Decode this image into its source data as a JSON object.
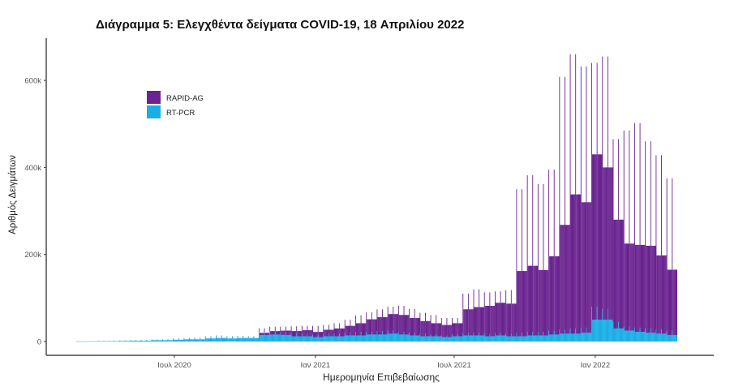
{
  "chart_data": {
    "type": "bar",
    "stacked": true,
    "title": "Διάγραμμα 5: Ελεγχθέντα δείγματα COVID-19, 18 Απριλίου 2022",
    "xlabel": "Ημερομηνία Επιβεβαίωσης",
    "ylabel": "Αριθμός Δειγμάτων",
    "ylim": [
      0,
      680000
    ],
    "xlim": [
      "2020-02-20",
      "2022-04-30"
    ],
    "y_ticks": [
      {
        "value": 0,
        "label": "0"
      },
      {
        "value": 200000,
        "label": "200k"
      },
      {
        "value": 400000,
        "label": "400k"
      },
      {
        "value": 600000,
        "label": "600k"
      }
    ],
    "x_ticks": [
      {
        "date": "2020-07-01",
        "label": "Ιουλ 2020"
      },
      {
        "date": "2021-01-01",
        "label": "Ιαν 2021"
      },
      {
        "date": "2021-07-01",
        "label": "Ιουλ 2021"
      },
      {
        "date": "2022-01-01",
        "label": "Ιαν 2022"
      }
    ],
    "grid": false,
    "legend": {
      "position": "top-left",
      "entries": [
        "RAPID-AG",
        "RT-PCR"
      ]
    },
    "periods": [
      "2020-02-24",
      "2020-03-09",
      "2020-03-23",
      "2020-04-06",
      "2020-04-20",
      "2020-05-04",
      "2020-05-18",
      "2020-06-01",
      "2020-06-15",
      "2020-06-29",
      "2020-07-13",
      "2020-07-27",
      "2020-08-10",
      "2020-08-24",
      "2020-09-07",
      "2020-09-21",
      "2020-10-05",
      "2020-10-19",
      "2020-11-02",
      "2020-11-16",
      "2020-11-30",
      "2020-12-14",
      "2020-12-28",
      "2021-01-11",
      "2021-01-25",
      "2021-02-08",
      "2021-02-22",
      "2021-03-08",
      "2021-03-22",
      "2021-04-05",
      "2021-04-19",
      "2021-05-03",
      "2021-05-17",
      "2021-05-31",
      "2021-06-14",
      "2021-06-28",
      "2021-07-12",
      "2021-07-26",
      "2021-08-09",
      "2021-08-23",
      "2021-09-06",
      "2021-09-20",
      "2021-10-04",
      "2021-10-18",
      "2021-11-01",
      "2021-11-15",
      "2021-11-29",
      "2021-12-13",
      "2021-12-27",
      "2022-01-10",
      "2022-01-24",
      "2022-02-07",
      "2022-02-21",
      "2022-03-07",
      "2022-03-21",
      "2022-04-04"
    ],
    "series": [
      {
        "name": "RT-PCR",
        "color": "#1aaee6",
        "typical": [
          300,
          500,
          1000,
          1000,
          1500,
          2000,
          2000,
          3000,
          3000,
          4000,
          5000,
          5000,
          7000,
          8000,
          7000,
          8000,
          8000,
          15000,
          16000,
          15000,
          12000,
          12000,
          10000,
          12000,
          12000,
          14000,
          14000,
          16000,
          16000,
          18000,
          16000,
          14000,
          12000,
          12000,
          10000,
          12000,
          14000,
          14000,
          12000,
          14000,
          12000,
          12000,
          14000,
          14000,
          16000,
          18000,
          18000,
          20000,
          50000,
          50000,
          30000,
          25000,
          22000,
          20000,
          18000,
          15000
        ],
        "peak": [
          500,
          1000,
          1500,
          2000,
          2500,
          3000,
          3500,
          5000,
          5000,
          7000,
          8000,
          9000,
          12000,
          14000,
          12000,
          13000,
          12000,
          22000,
          24000,
          22000,
          20000,
          18000,
          16000,
          18000,
          18000,
          20000,
          22000,
          22000,
          24000,
          25000,
          22000,
          20000,
          18000,
          16000,
          14000,
          16000,
          20000,
          20000,
          18000,
          20000,
          18000,
          20000,
          22000,
          22000,
          25000,
          28000,
          30000,
          32000,
          80000,
          75000,
          45000,
          35000,
          32000,
          30000,
          28000,
          25000
        ]
      },
      {
        "name": "RAPID-AG",
        "color": "#6a2390",
        "typical": [
          0,
          0,
          0,
          0,
          0,
          0,
          0,
          0,
          0,
          0,
          0,
          0,
          0,
          0,
          0,
          0,
          0,
          5000,
          8000,
          10000,
          12000,
          14000,
          12000,
          15000,
          18000,
          22000,
          28000,
          35000,
          40000,
          45000,
          45000,
          40000,
          35000,
          30000,
          28000,
          30000,
          60000,
          65000,
          70000,
          75000,
          75000,
          150000,
          160000,
          150000,
          180000,
          250000,
          320000,
          300000,
          380000,
          350000,
          250000,
          200000,
          200000,
          200000,
          180000,
          150000
        ],
        "peak": [
          0,
          0,
          0,
          0,
          0,
          0,
          0,
          0,
          0,
          0,
          0,
          0,
          0,
          0,
          0,
          0,
          0,
          8000,
          10000,
          12000,
          15000,
          18000,
          20000,
          20000,
          24000,
          30000,
          38000,
          45000,
          50000,
          55000,
          60000,
          55000,
          48000,
          45000,
          40000,
          38000,
          90000,
          100000,
          95000,
          95000,
          100000,
          330000,
          360000,
          340000,
          370000,
          580000,
          630000,
          600000,
          560000,
          580000,
          420000,
          450000,
          470000,
          430000,
          400000,
          350000
        ]
      }
    ]
  }
}
